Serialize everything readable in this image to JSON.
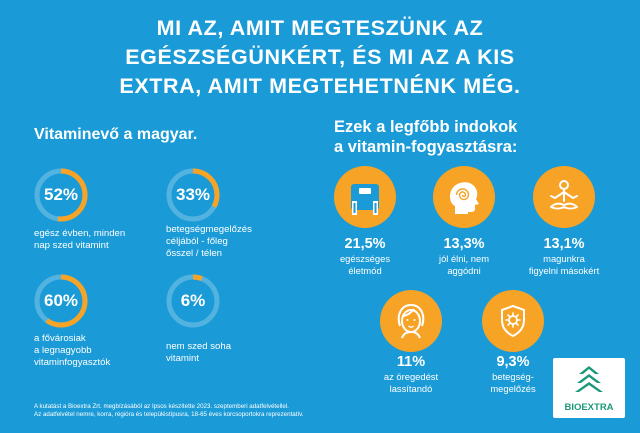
{
  "title": {
    "line1": "MI AZ, AMIT MEGTESZÜNK AZ",
    "line2": "EGÉSZSÉGÜNKÉRT, ÉS MI AZ A KIS",
    "line3": "EXTRA, AMIT MEGTEHETNÉNK MÉG."
  },
  "left_heading": "Vitaminevő a magyar.",
  "right_heading": {
    "line1": "Ezek a legfőbb indokok",
    "line2": "a vitamin-fogyasztásra:"
  },
  "stats": [
    {
      "value": "52%",
      "fraction": 0.52,
      "lines": [
        "egész évben, minden",
        "nap szed vitamint"
      ]
    },
    {
      "value": "33%",
      "fraction": 0.33,
      "lines": [
        "betegségmegelőzés",
        "céljából - főleg",
        "ősszel / télen"
      ]
    },
    {
      "value": "60%",
      "fraction": 0.6,
      "lines": [
        "a fővárosiak",
        "a legnagyobb",
        "vitaminfogyasztók"
      ]
    },
    {
      "value": "6%",
      "fraction": 0.06,
      "lines": [
        "nem szed soha",
        "vitamint"
      ]
    }
  ],
  "reasons": [
    {
      "value": "21,5%",
      "icon": "scale-icon",
      "lines": [
        "egészséges",
        "életmód"
      ]
    },
    {
      "value": "13,3%",
      "icon": "head-spiral-icon",
      "lines": [
        "jól élni, nem",
        "aggódni"
      ]
    },
    {
      "value": "13,1%",
      "icon": "meditation-icon",
      "lines": [
        "magunkra",
        "figyelni másokért"
      ]
    },
    {
      "value": "11%",
      "icon": "woman-face-icon",
      "lines": [
        "az öregedést",
        "lassítandó"
      ]
    },
    {
      "value": "9,3%",
      "icon": "shield-virus-icon",
      "lines": [
        "betegség-",
        "megelőzés"
      ]
    }
  ],
  "footnote": {
    "line1": "A kutatást a Bioextra Zrt. megbízásából az Ipsos készítette 2023. szeptemberi adatfelvétellel.",
    "line2": "Az adatfelvétel nemre, korra, régióra és településtípusra, 18-65 éves korcsoportokra reprezentatív."
  },
  "logo": {
    "text": "BIOEXTRA"
  },
  "colors": {
    "background": "#1a9ad6",
    "accent": "#f7a325",
    "brand": "#1b9a7a"
  }
}
